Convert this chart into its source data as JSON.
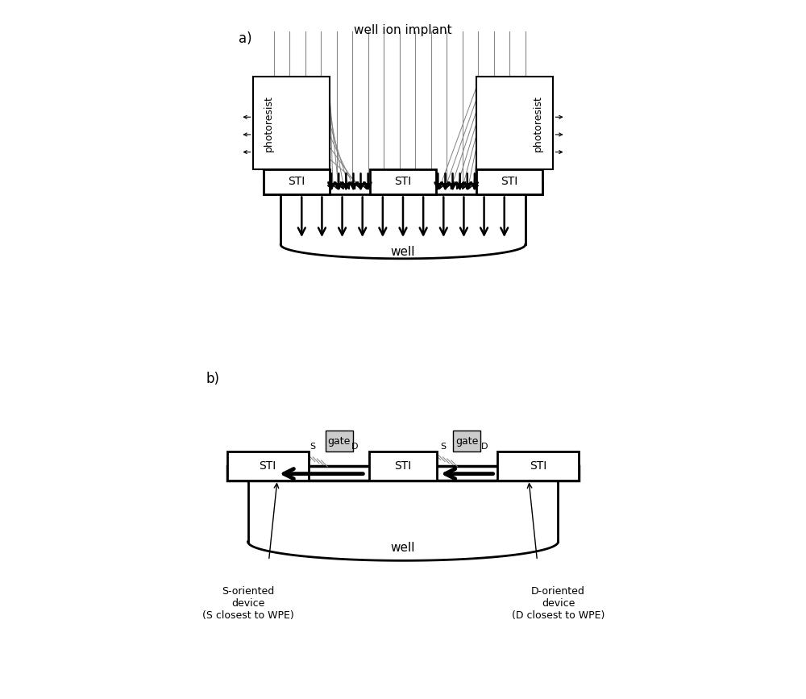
{
  "bg_color": "#ffffff",
  "fig_width": 10.0,
  "fig_height": 8.67,
  "title_a": "a)",
  "title_b": "b)",
  "label_well_ion": "well ion implant",
  "label_well_a": "well",
  "label_well_b": "well",
  "label_STI": "STI",
  "label_photoresist": "photoresist",
  "label_gate": "gate",
  "label_S": "S",
  "label_D": "D",
  "label_s_oriented": "S-oriented\ndevice\n(S closest to WPE)",
  "label_d_oriented": "D-oriented\ndevice\n(D closest to WPE)"
}
